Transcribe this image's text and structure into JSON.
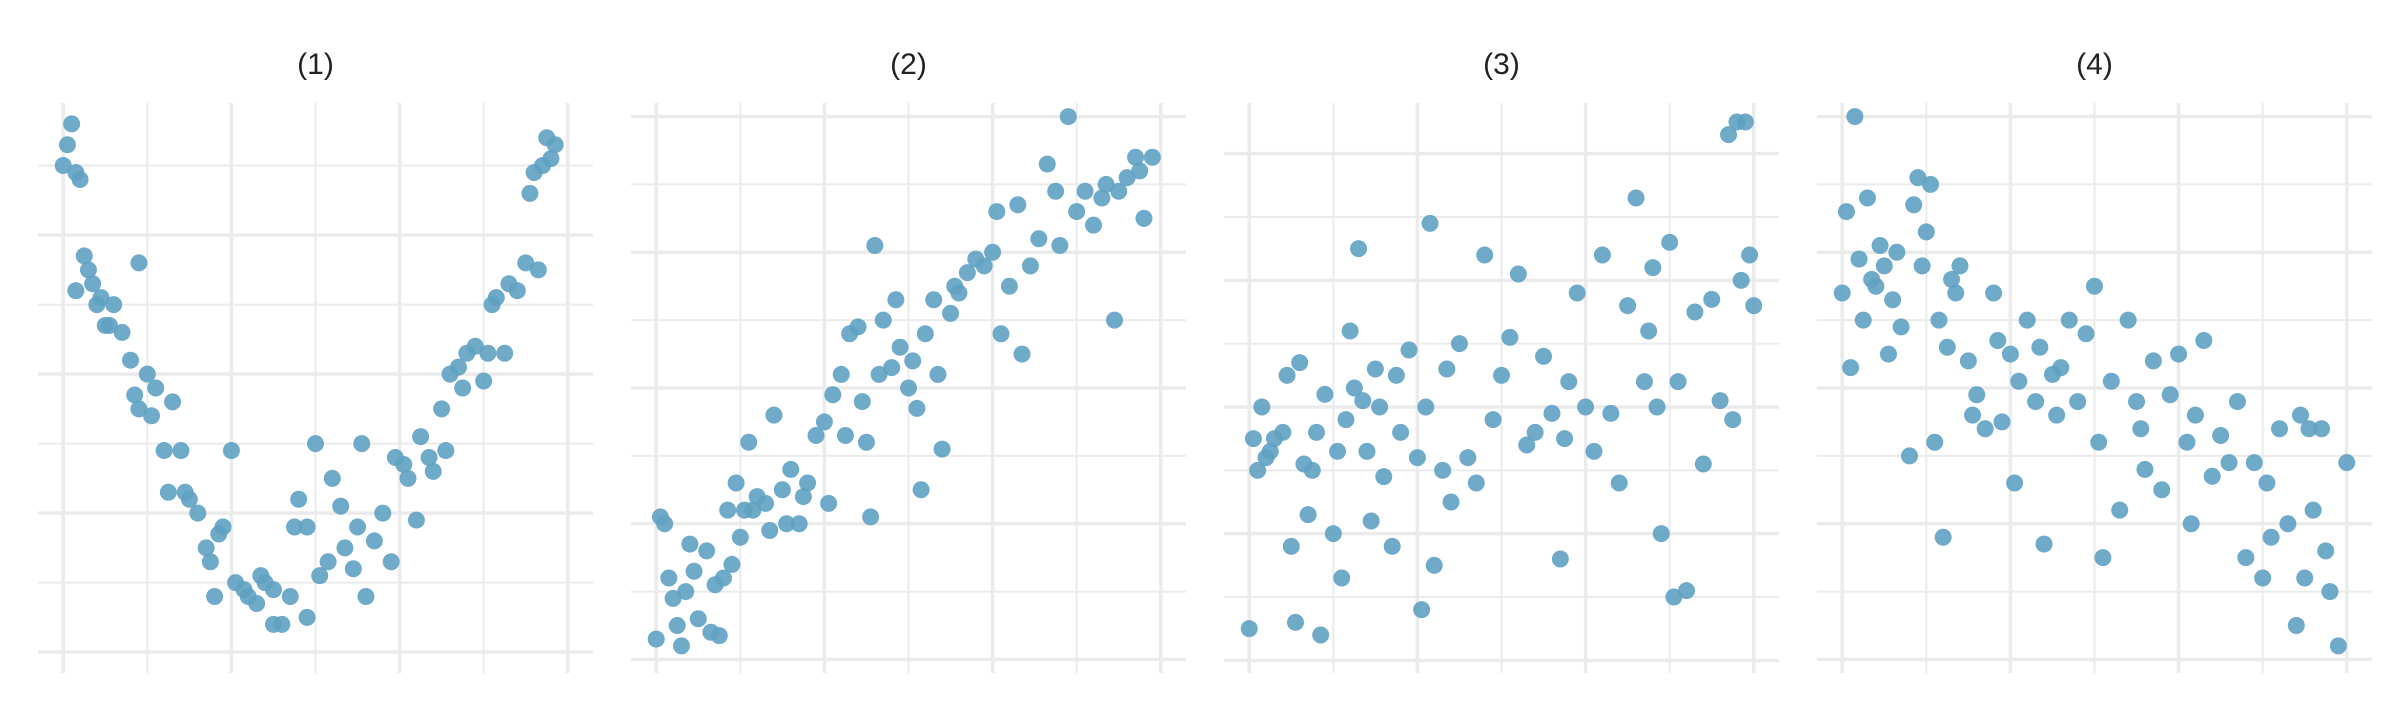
{
  "chart_data": [
    {
      "type": "scatter",
      "title": "(1)",
      "color": "#5fa1c2",
      "grid": true,
      "xlim": [
        -0.3,
        6.3
      ],
      "ylim": [
        -0.3,
        7.9
      ],
      "xticks": [
        0,
        1,
        2,
        3,
        4,
        5,
        6
      ],
      "yticks": [
        0,
        1,
        2,
        3,
        4,
        5,
        6,
        7
      ],
      "x": [
        0.0,
        0.05,
        0.1,
        0.15,
        0.2,
        0.15,
        0.25,
        0.3,
        0.35,
        0.4,
        0.45,
        0.5,
        0.55,
        0.6,
        0.7,
        0.8,
        0.9,
        0.85,
        0.9,
        1.0,
        1.05,
        1.1,
        1.2,
        1.25,
        1.3,
        1.4,
        1.45,
        1.5,
        1.6,
        1.7,
        1.75,
        1.8,
        1.85,
        1.9,
        2.0,
        2.05,
        2.15,
        2.2,
        2.3,
        2.35,
        2.4,
        2.5,
        2.5,
        2.6,
        2.7,
        2.75,
        2.8,
        2.9,
        2.9,
        3.0,
        3.05,
        3.15,
        3.2,
        3.3,
        3.35,
        3.45,
        3.5,
        3.55,
        3.6,
        3.7,
        3.8,
        3.9,
        3.95,
        4.05,
        4.1,
        4.2,
        4.25,
        4.35,
        4.4,
        4.5,
        4.55,
        4.6,
        4.7,
        4.75,
        4.8,
        4.9,
        5.0,
        5.05,
        5.1,
        5.15,
        5.25,
        5.3,
        5.4,
        5.5,
        5.55,
        5.6,
        5.65,
        5.7,
        5.75,
        5.8,
        5.85
      ],
      "values": [
        7.0,
        7.3,
        7.6,
        6.9,
        6.8,
        5.2,
        5.7,
        5.5,
        5.3,
        5.0,
        5.1,
        4.7,
        4.7,
        5.0,
        4.6,
        4.2,
        5.6,
        3.7,
        3.5,
        4.0,
        3.4,
        3.8,
        2.9,
        2.3,
        3.6,
        2.9,
        2.3,
        2.2,
        2.0,
        1.5,
        1.3,
        0.8,
        1.7,
        1.8,
        2.9,
        1.0,
        0.9,
        0.8,
        0.7,
        1.1,
        1.0,
        0.9,
        0.4,
        0.4,
        0.8,
        1.8,
        2.2,
        1.8,
        0.5,
        3.0,
        1.1,
        1.3,
        2.5,
        2.1,
        1.5,
        1.2,
        1.8,
        3.0,
        0.8,
        1.6,
        2.0,
        1.3,
        2.8,
        2.7,
        2.5,
        1.9,
        3.1,
        2.8,
        2.6,
        3.5,
        2.9,
        4.0,
        4.1,
        3.8,
        4.3,
        4.4,
        3.9,
        4.3,
        5.0,
        5.1,
        4.3,
        5.3,
        5.2,
        5.6,
        6.6,
        6.9,
        5.5,
        7.0,
        7.4,
        7.1,
        7.3
      ]
    },
    {
      "type": "scatter",
      "title": "(2)",
      "color": "#5fa1c2",
      "grid": true,
      "xlim": [
        -0.3,
        6.3
      ],
      "ylim": [
        -0.2,
        8.2
      ],
      "xticks": [
        0,
        1,
        2,
        3,
        4,
        5,
        6
      ],
      "yticks": [
        0,
        1,
        2,
        3,
        4,
        5,
        6,
        7,
        8
      ],
      "x": [
        0,
        0.05,
        0.1,
        0.15,
        0.2,
        0.25,
        0.3,
        0.35,
        0.4,
        0.5,
        0.45,
        0.6,
        0.65,
        0.7,
        0.75,
        0.8,
        0.85,
        0.9,
        0.95,
        1.0,
        1.05,
        1.1,
        1.15,
        1.2,
        1.3,
        1.35,
        1.4,
        1.5,
        1.55,
        1.6,
        1.7,
        1.75,
        1.8,
        1.9,
        2.0,
        2.05,
        2.1,
        2.2,
        2.25,
        2.3,
        2.4,
        2.45,
        2.5,
        2.55,
        2.6,
        2.65,
        2.7,
        2.8,
        2.85,
        2.9,
        3.0,
        3.05,
        3.1,
        3.15,
        3.2,
        3.3,
        3.35,
        3.4,
        3.5,
        3.55,
        3.6,
        3.7,
        3.8,
        3.9,
        4.0,
        4.05,
        4.1,
        4.2,
        4.3,
        4.35,
        4.45,
        4.55,
        4.65,
        4.75,
        4.8,
        4.9,
        5.0,
        5.1,
        5.2,
        5.3,
        5.35,
        5.45,
        5.5,
        5.6,
        5.7,
        5.75,
        5.8,
        5.9
      ],
      "values": [
        0.3,
        2.1,
        2.0,
        1.2,
        0.9,
        0.5,
        0.2,
        1.0,
        1.7,
        0.6,
        1.3,
        1.6,
        0.4,
        1.1,
        0.35,
        1.2,
        2.2,
        1.4,
        2.6,
        1.8,
        2.2,
        3.2,
        2.2,
        2.4,
        2.3,
        1.9,
        3.6,
        2.5,
        2.0,
        2.8,
        2.0,
        2.4,
        2.6,
        3.3,
        3.5,
        2.3,
        3.9,
        4.2,
        3.3,
        4.8,
        4.9,
        3.8,
        3.2,
        2.1,
        6.1,
        4.2,
        5.0,
        4.3,
        5.3,
        4.6,
        4.0,
        4.4,
        3.7,
        2.5,
        4.8,
        5.3,
        4.2,
        3.1,
        5.1,
        5.5,
        5.4,
        5.7,
        5.9,
        5.8,
        6.0,
        6.6,
        4.8,
        5.5,
        6.7,
        4.5,
        5.8,
        6.2,
        7.3,
        6.9,
        6.1,
        8.0,
        6.6,
        6.9,
        6.4,
        6.8,
        7.0,
        5.0,
        6.9,
        7.1,
        7.4,
        7.2,
        6.5,
        7.4
      ]
    },
    {
      "type": "scatter",
      "title": "(3)",
      "color": "#5fa1c2",
      "grid": true,
      "xlim": [
        -0.3,
        6.3
      ],
      "ylim": [
        -0.2,
        8.8
      ],
      "xticks": [
        0,
        1,
        2,
        3,
        4,
        5,
        6
      ],
      "yticks": [
        0,
        1,
        2,
        3,
        4,
        5,
        6,
        7,
        8
      ],
      "x": [
        0,
        0.05,
        0.1,
        0.15,
        0.2,
        0.25,
        0.3,
        0.4,
        0.45,
        0.5,
        0.55,
        0.6,
        0.65,
        0.7,
        0.75,
        0.8,
        0.85,
        0.9,
        1.0,
        1.05,
        1.1,
        1.15,
        1.2,
        1.25,
        1.3,
        1.35,
        1.4,
        1.45,
        1.5,
        1.55,
        1.6,
        1.7,
        1.75,
        1.8,
        1.9,
        2.0,
        2.05,
        2.1,
        2.15,
        2.2,
        2.3,
        2.35,
        2.4,
        2.5,
        2.6,
        2.7,
        2.8,
        2.9,
        3.0,
        3.1,
        3.2,
        3.3,
        3.4,
        3.5,
        3.6,
        3.7,
        3.75,
        3.8,
        3.9,
        4.0,
        4.1,
        4.2,
        4.3,
        4.4,
        4.5,
        4.6,
        4.7,
        4.75,
        4.8,
        4.85,
        4.9,
        5.0,
        5.05,
        5.1,
        5.2,
        5.3,
        5.4,
        5.5,
        5.6,
        5.7,
        5.75,
        5.8,
        5.85,
        5.9,
        6.0,
        5.95
      ],
      "values": [
        0.5,
        3.5,
        3.0,
        4.0,
        3.2,
        3.3,
        3.5,
        3.6,
        4.5,
        1.8,
        0.6,
        4.7,
        3.1,
        2.3,
        3.0,
        3.6,
        0.4,
        4.2,
        2.0,
        3.3,
        1.3,
        3.8,
        5.2,
        4.3,
        6.5,
        4.1,
        3.3,
        2.2,
        4.6,
        4.0,
        2.9,
        1.8,
        4.5,
        3.6,
        4.9,
        3.2,
        0.8,
        4.0,
        6.9,
        1.5,
        3.0,
        4.6,
        2.5,
        5.0,
        3.2,
        2.8,
        6.4,
        3.8,
        4.5,
        5.1,
        6.1,
        3.4,
        3.6,
        4.8,
        3.9,
        1.6,
        3.5,
        4.4,
        5.8,
        4.0,
        3.3,
        6.4,
        3.9,
        2.8,
        5.6,
        7.3,
        4.4,
        5.2,
        6.2,
        4.0,
        2.0,
        6.6,
        1.0,
        4.4,
        1.1,
        5.5,
        3.1,
        5.7,
        4.1,
        8.3,
        3.8,
        8.5,
        6.0,
        8.5,
        5.6,
        6.4
      ]
    },
    {
      "type": "scatter",
      "title": "(4)",
      "color": "#5fa1c2",
      "grid": true,
      "xlim": [
        -0.3,
        6.3
      ],
      "ylim": [
        -0.2,
        8.2
      ],
      "xticks": [
        0,
        1,
        2,
        3,
        4,
        5,
        6
      ],
      "yticks": [
        0,
        1,
        2,
        3,
        4,
        5,
        6,
        7,
        8
      ],
      "x": [
        0,
        0.05,
        0.1,
        0.15,
        0.2,
        0.25,
        0.3,
        0.35,
        0.4,
        0.45,
        0.5,
        0.55,
        0.6,
        0.65,
        0.7,
        0.8,
        0.85,
        0.9,
        0.95,
        1.0,
        1.05,
        1.1,
        1.15,
        1.2,
        1.25,
        1.3,
        1.35,
        1.4,
        1.5,
        1.55,
        1.6,
        1.7,
        1.8,
        1.85,
        1.9,
        2.0,
        2.05,
        2.1,
        2.2,
        2.3,
        2.35,
        2.4,
        2.5,
        2.55,
        2.6,
        2.7,
        2.8,
        2.9,
        3.0,
        3.05,
        3.1,
        3.2,
        3.3,
        3.4,
        3.5,
        3.55,
        3.6,
        3.7,
        3.8,
        3.9,
        4.0,
        4.1,
        4.15,
        4.2,
        4.3,
        4.4,
        4.5,
        4.6,
        4.7,
        4.8,
        4.9,
        5.0,
        5.05,
        5.1,
        5.2,
        5.3,
        5.4,
        5.45,
        5.5,
        5.55,
        5.6,
        5.7,
        5.75,
        5.8,
        5.9,
        6.0
      ],
      "values": [
        5.4,
        6.6,
        4.3,
        8.0,
        5.9,
        5.0,
        6.8,
        5.6,
        5.5,
        6.1,
        5.8,
        4.5,
        5.3,
        6.0,
        4.9,
        3.0,
        6.7,
        7.1,
        5.8,
        6.3,
        7.0,
        3.2,
        5.0,
        1.8,
        4.6,
        5.6,
        5.4,
        5.8,
        4.4,
        3.6,
        3.9,
        3.4,
        5.4,
        4.7,
        3.5,
        4.5,
        2.6,
        4.1,
        5.0,
        3.8,
        4.6,
        1.7,
        4.2,
        3.6,
        4.3,
        5.0,
        3.8,
        4.8,
        5.5,
        3.2,
        1.5,
        4.1,
        2.2,
        5.0,
        3.8,
        3.4,
        2.8,
        4.4,
        2.5,
        3.9,
        4.5,
        3.2,
        2.0,
        3.6,
        4.7,
        2.7,
        3.3,
        2.9,
        3.8,
        1.5,
        2.9,
        1.2,
        2.6,
        1.8,
        3.4,
        2.0,
        0.5,
        3.6,
        1.2,
        3.4,
        2.2,
        3.4,
        1.6,
        1.0,
        0.2,
        2.9
      ]
    }
  ]
}
